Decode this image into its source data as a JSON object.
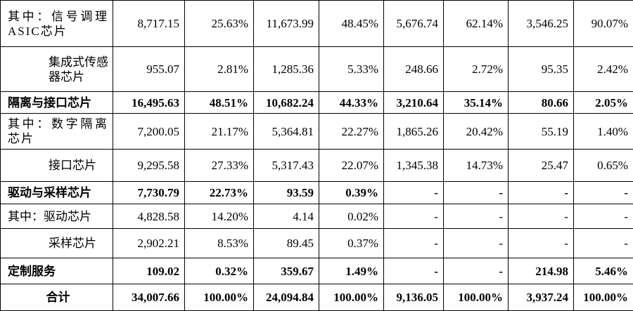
{
  "table": {
    "rows": [
      [
        "其中：信号调理ASIC芯片",
        "8,717.15",
        "25.63%",
        "11,673.99",
        "48.45%",
        "5,676.74",
        "62.14%",
        "3,546.25",
        "90.07%"
      ],
      [
        "集成式传感器芯片",
        "955.07",
        "2.81%",
        "1,285.36",
        "5.33%",
        "248.66",
        "2.72%",
        "95.35",
        "2.42%"
      ],
      [
        "隔离与接口芯片",
        "16,495.63",
        "48.51%",
        "10,682.24",
        "44.33%",
        "3,210.64",
        "35.14%",
        "80.66",
        "2.05%"
      ],
      [
        "其中：数字隔离芯片",
        "7,200.05",
        "21.17%",
        "5,364.81",
        "22.27%",
        "1,865.26",
        "20.42%",
        "55.19",
        "1.40%"
      ],
      [
        "接口芯片",
        "9,295.58",
        "27.33%",
        "5,317.43",
        "22.07%",
        "1,345.38",
        "14.73%",
        "25.47",
        "0.65%"
      ],
      [
        "驱动与采样芯片",
        "7,730.79",
        "22.73%",
        "93.59",
        "0.39%",
        "-",
        "-",
        "-",
        "-"
      ],
      [
        "其中：驱动芯片",
        "4,828.58",
        "14.20%",
        "4.14",
        "0.02%",
        "-",
        "-",
        "-",
        "-"
      ],
      [
        "采样芯片",
        "2,902.21",
        "8.53%",
        "89.45",
        "0.37%",
        "-",
        "-",
        "-",
        "-"
      ],
      [
        "定制服务",
        "109.02",
        "0.32%",
        "359.67",
        "1.49%",
        "-",
        "-",
        "214.98",
        "5.46%"
      ],
      [
        "合计",
        "34,007.66",
        "100.00%",
        "24,094.84",
        "100.00%",
        "9,136.05",
        "100.00%",
        "3,937.24",
        "100.00%"
      ]
    ]
  }
}
